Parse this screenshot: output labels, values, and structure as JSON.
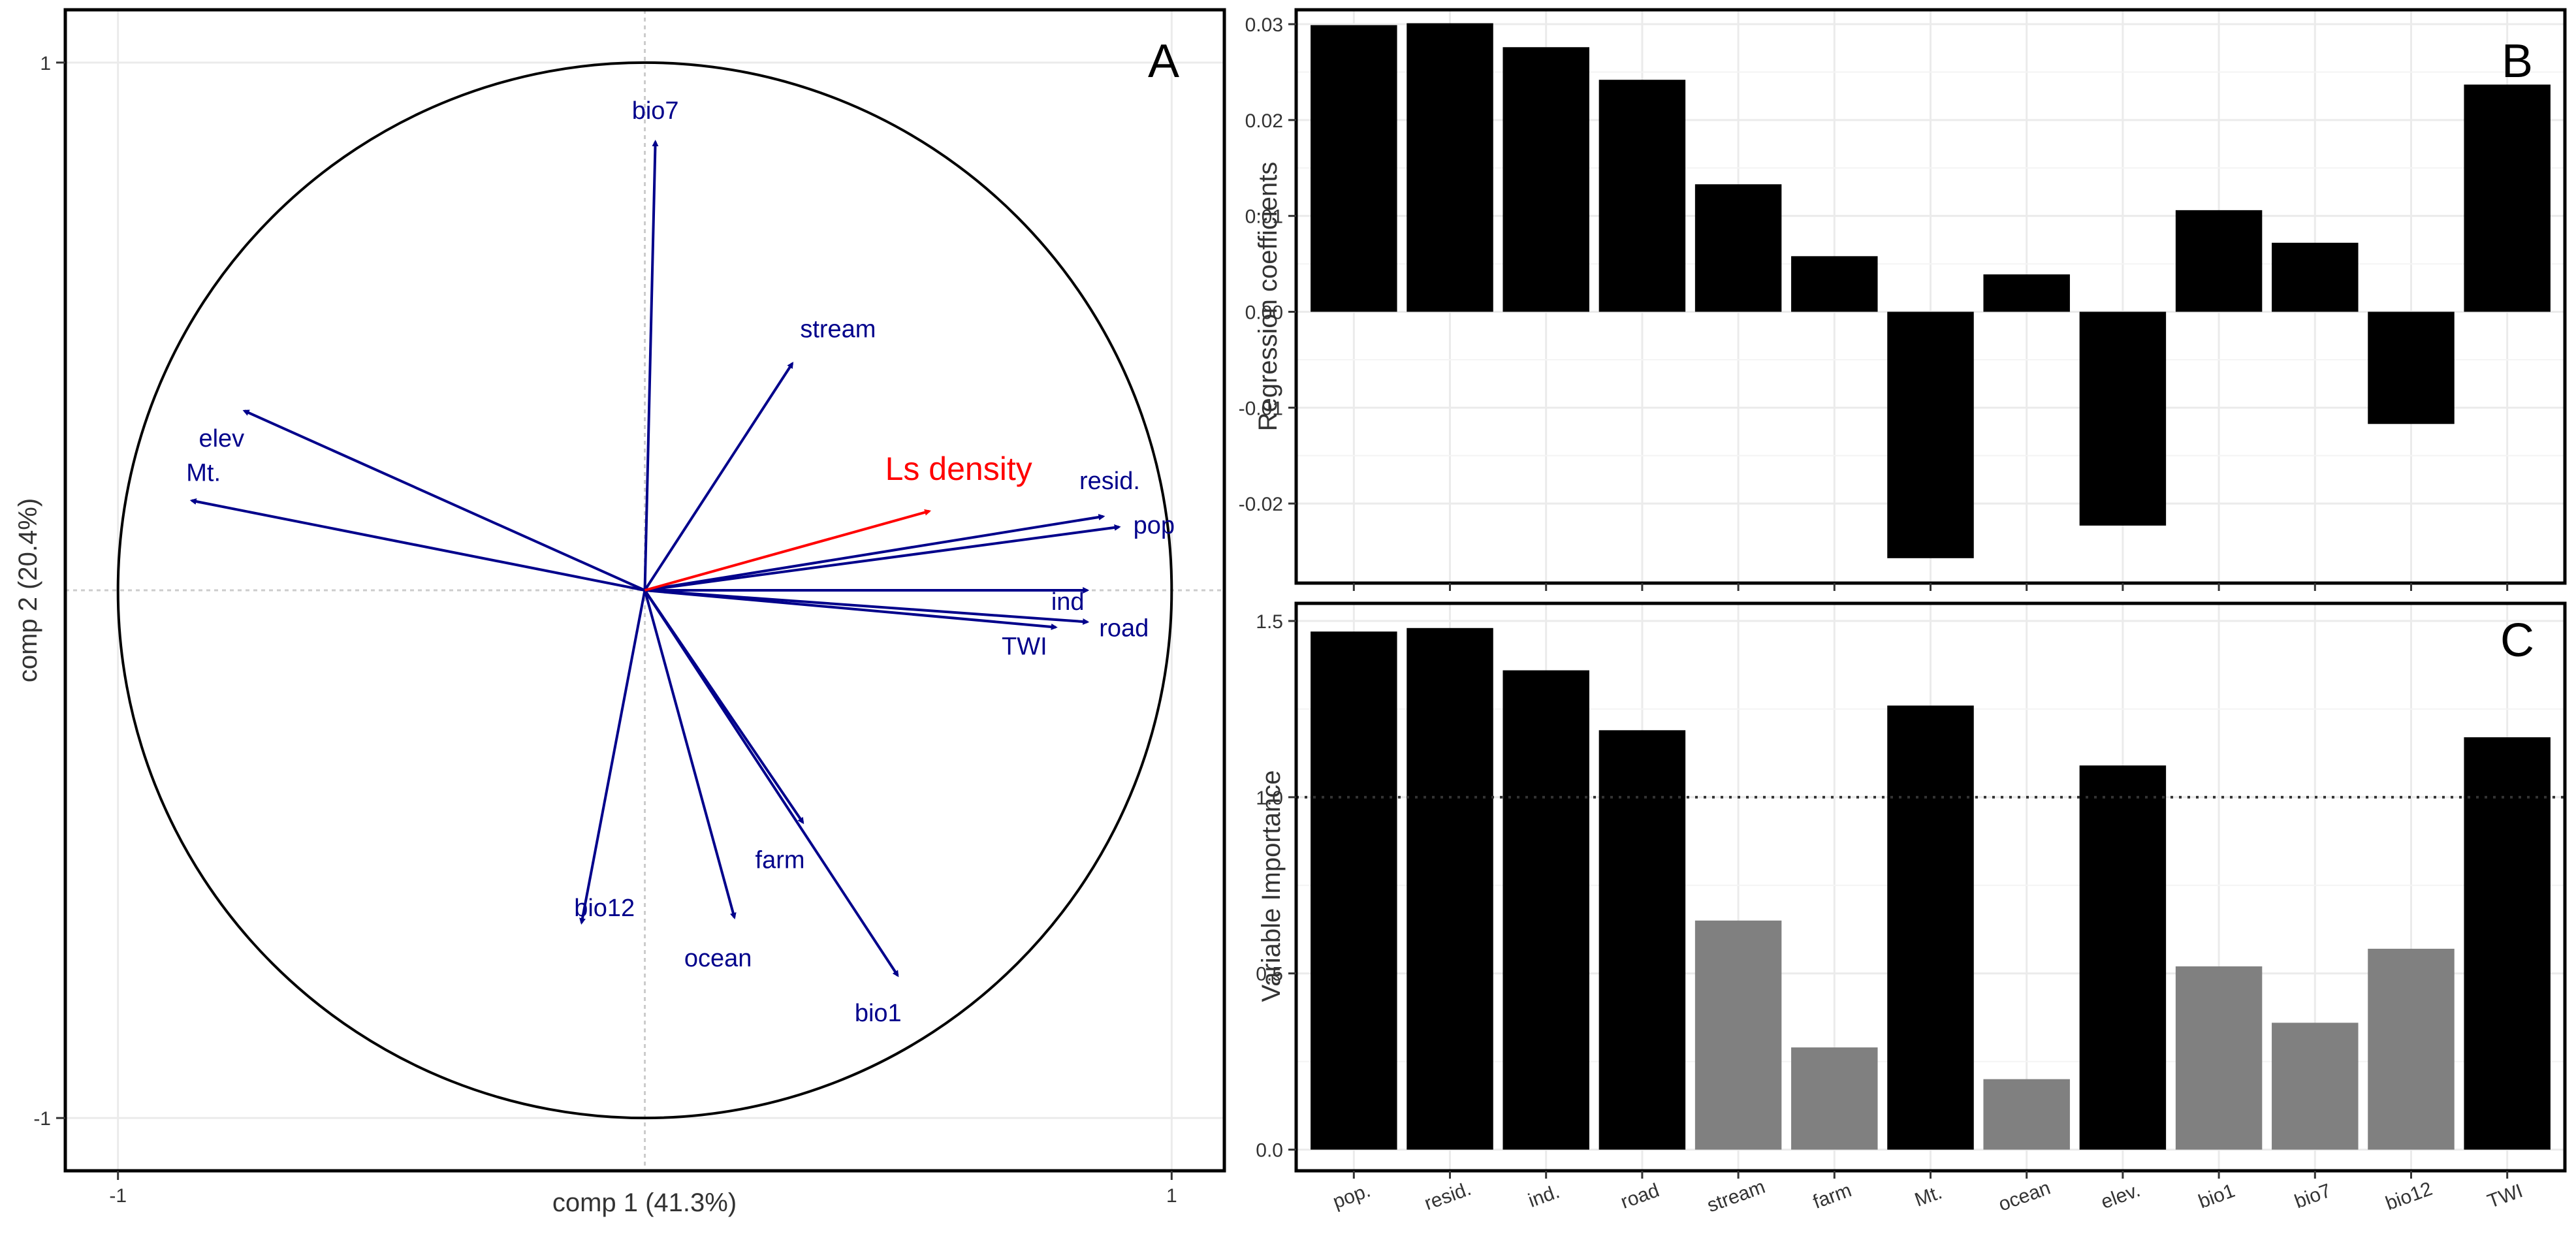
{
  "chart_data": [
    {
      "panel": "A",
      "type": "scatter",
      "subtype": "correlation-circle biplot",
      "panel_label": "A",
      "xlabel": "comp 1 (41.3%)",
      "ylabel": "comp 2 (20.4%)",
      "xlim": [
        -1.1,
        1.1
      ],
      "ylim": [
        -1.1,
        1.1
      ],
      "x_ticks": [
        "-1",
        "1"
      ],
      "y_ticks": [
        "-1",
        "1"
      ],
      "grid": true,
      "circle_radius": 1,
      "arrow_color": "#00008B",
      "response_color": "#FF0000",
      "response": {
        "name": "Ls density",
        "x": 0.54,
        "y": 0.15
      },
      "arrows": [
        {
          "name": "bio7",
          "x": 0.02,
          "y": 0.85
        },
        {
          "name": "stream",
          "x": 0.28,
          "y": 0.43
        },
        {
          "name": "elev",
          "x": -0.76,
          "y": 0.34
        },
        {
          "name": "Mt.",
          "x": -0.86,
          "y": 0.17
        },
        {
          "name": "resid.",
          "x": 0.87,
          "y": 0.14
        },
        {
          "name": "pop",
          "x": 0.9,
          "y": 0.12
        },
        {
          "name": "ind",
          "x": 0.84,
          "y": 0.0
        },
        {
          "name": "road",
          "x": 0.84,
          "y": -0.06
        },
        {
          "name": "TWI",
          "x": 0.78,
          "y": -0.07
        },
        {
          "name": "farm",
          "x": 0.3,
          "y": -0.44
        },
        {
          "name": "bio12",
          "x": -0.12,
          "y": -0.63
        },
        {
          "name": "ocean",
          "x": 0.17,
          "y": -0.62
        },
        {
          "name": "bio1",
          "x": 0.48,
          "y": -0.73
        }
      ]
    },
    {
      "panel": "B",
      "type": "bar",
      "panel_label": "B",
      "ylabel": "Regression coefficients",
      "ylim": [
        -0.0283,
        0.0315
      ],
      "y_ticks": [
        "-0.02",
        "-0.01",
        "0.00",
        "0.01",
        "0.02",
        "0.03"
      ],
      "y_tick_values": [
        -0.02,
        -0.01,
        0.0,
        0.01,
        0.02,
        0.03
      ],
      "grid": true,
      "bar_color": "#000000",
      "categories": [
        "pop.",
        "resid.",
        "ind.",
        "road",
        "stream",
        "farm",
        "Mt.",
        "ocean",
        "elev.",
        "bio1",
        "bio7",
        "bio12",
        "TWI"
      ],
      "values": [
        0.0299,
        0.0301,
        0.0276,
        0.0242,
        0.0133,
        0.0058,
        -0.0257,
        0.0039,
        -0.0223,
        0.0106,
        0.0072,
        -0.0117,
        0.0237
      ]
    },
    {
      "panel": "C",
      "type": "bar",
      "panel_label": "C",
      "ylabel": "Variable Importance",
      "ylim": [
        -0.06,
        1.55
      ],
      "y_ticks": [
        "0.0",
        "0.5",
        "1.0",
        "1.5"
      ],
      "y_tick_values": [
        0.0,
        0.5,
        1.0,
        1.5
      ],
      "grid": true,
      "threshold": 1.0,
      "threshold_style": "dotted",
      "color_above_threshold": "#000000",
      "color_below_threshold": "#808080",
      "categories": [
        "pop.",
        "resid.",
        "ind.",
        "road",
        "stream",
        "farm",
        "Mt.",
        "ocean",
        "elev.",
        "bio1",
        "bio7",
        "bio12",
        "TWI"
      ],
      "x_tick_labels": [
        "pop.",
        "resid.",
        "ind.",
        "road",
        "stream",
        "farm",
        "Mt.",
        "ocean",
        "elev.",
        "bio1",
        "bio7",
        "bio12",
        "TWI"
      ],
      "values": [
        1.47,
        1.48,
        1.36,
        1.19,
        0.65,
        0.29,
        1.26,
        0.2,
        1.09,
        0.52,
        0.36,
        0.57,
        1.17
      ]
    }
  ]
}
